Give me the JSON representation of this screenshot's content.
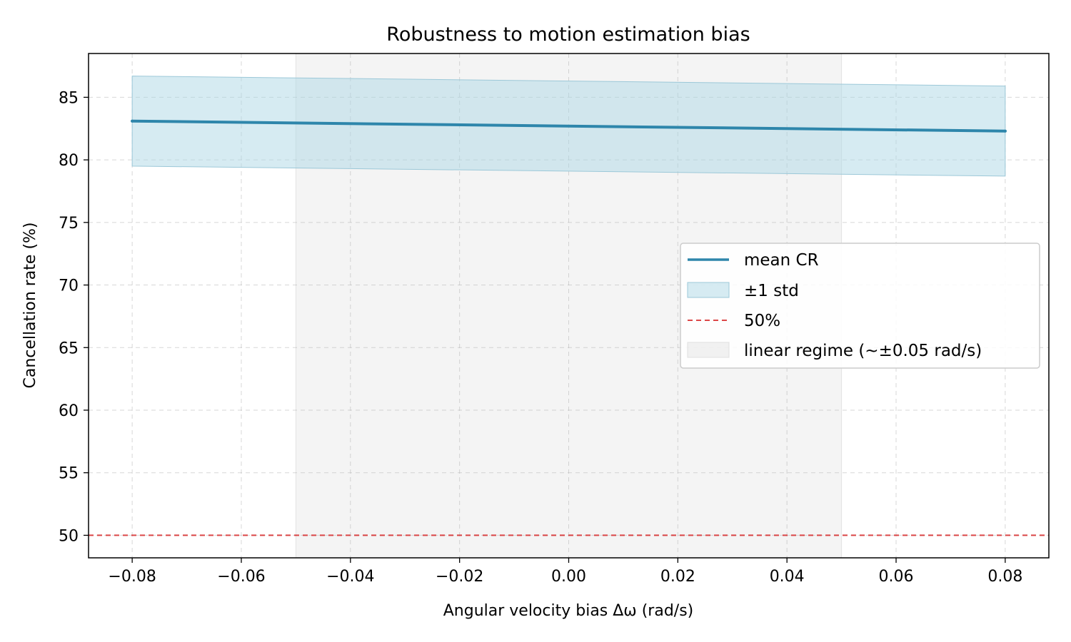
{
  "chart_data": {
    "type": "line",
    "title": "Robustness to motion estimation bias",
    "xlabel": "Angular velocity bias Δω (rad/s)",
    "ylabel": "Cancellation rate (%)",
    "xlim": [
      -0.088,
      0.088
    ],
    "ylim": [
      48.2,
      88.5
    ],
    "x_ticks": [
      -0.08,
      -0.06,
      -0.04,
      -0.02,
      0.0,
      0.02,
      0.04,
      0.06,
      0.08
    ],
    "x_tick_labels": [
      "−0.08",
      "−0.06",
      "−0.04",
      "−0.02",
      "0.00",
      "0.02",
      "0.04",
      "0.06",
      "0.08"
    ],
    "y_ticks": [
      50,
      55,
      60,
      65,
      70,
      75,
      80,
      85
    ],
    "y_tick_labels": [
      "50",
      "55",
      "60",
      "65",
      "70",
      "75",
      "80",
      "85"
    ],
    "grid": true,
    "legend_position": "center-right",
    "series": [
      {
        "name": "mean CR",
        "color": "#2e86ab",
        "x": [
          -0.08,
          0.08
        ],
        "y": [
          83.1,
          82.3
        ]
      }
    ],
    "band": {
      "name": "±1 std",
      "color": "#add8e6",
      "x": [
        -0.08,
        0.08
      ],
      "lower": [
        79.5,
        78.7
      ],
      "upper": [
        86.7,
        85.9
      ]
    },
    "reference_line": {
      "name": "50%",
      "y": 50,
      "color": "#d62728"
    },
    "shaded_region": {
      "name": "linear regime (~±0.05 rad/s)",
      "x_range": [
        -0.05,
        0.05
      ],
      "color": "#d3d3d3"
    }
  }
}
